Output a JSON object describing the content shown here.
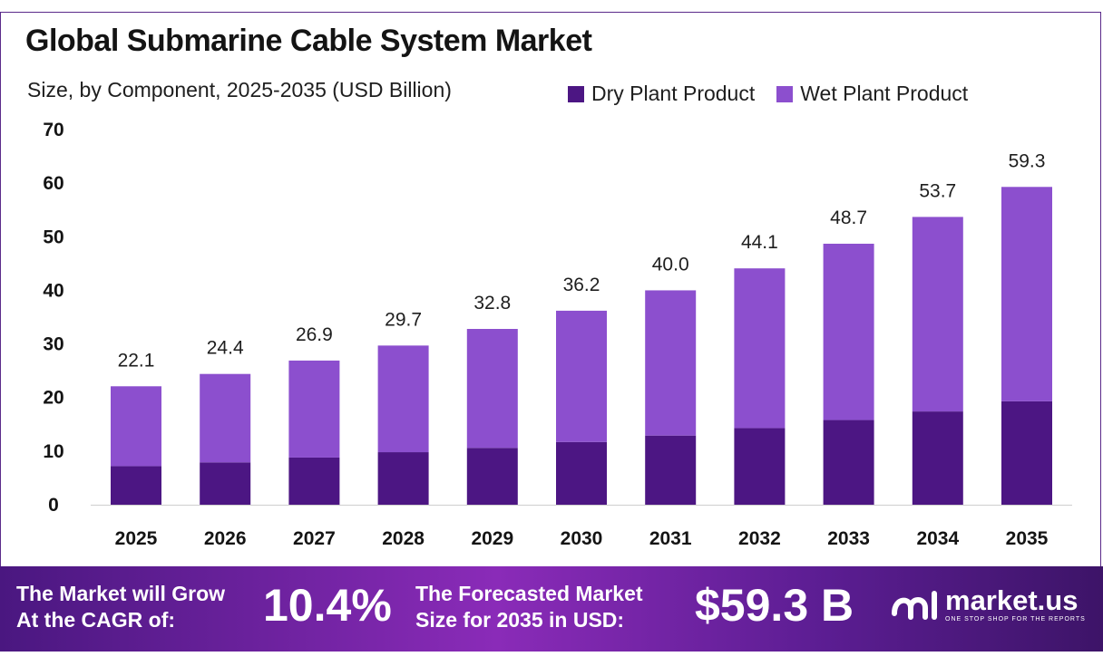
{
  "chart_data": {
    "type": "bar",
    "stacked": true,
    "title": "Global Submarine Cable System Market",
    "subtitle": "Size, by Component, 2025-2035 (USD Billion)",
    "categories": [
      "2025",
      "2026",
      "2027",
      "2028",
      "2029",
      "2030",
      "2031",
      "2032",
      "2033",
      "2034",
      "2035"
    ],
    "series": [
      {
        "name": "Dry Plant Product",
        "color": "#4c1683",
        "values": [
          7.2,
          7.9,
          8.8,
          9.8,
          10.6,
          11.7,
          12.9,
          14.3,
          15.8,
          17.4,
          19.3
        ]
      },
      {
        "name": "Wet Plant Product",
        "color": "#8c4fce",
        "values": [
          14.9,
          16.5,
          18.1,
          19.9,
          22.2,
          24.5,
          27.1,
          29.8,
          32.9,
          36.3,
          40.0
        ]
      }
    ],
    "totals": [
      "22.1",
      "24.4",
      "26.9",
      "29.7",
      "32.8",
      "36.2",
      "40.0",
      "44.1",
      "48.7",
      "53.7",
      "59.3"
    ],
    "yticks": [
      "0",
      "10",
      "20",
      "30",
      "40",
      "50",
      "60",
      "70"
    ],
    "ylim": [
      0,
      70
    ],
    "grid": false,
    "legend_position": "top-right"
  },
  "banner": {
    "cagr_label_line1": "The Market will Grow",
    "cagr_label_line2": "At the CAGR of:",
    "cagr_value": "10.4%",
    "forecast_label_line1": "The Forecasted Market",
    "forecast_label_line2": "Size for 2035 in USD:",
    "forecast_value": "$59.3 B",
    "brand_name": "market.us",
    "brand_tagline": "ONE STOP SHOP FOR THE REPORTS",
    "colors": {
      "start": "#4a1780",
      "mid": "#8a2bb8",
      "end": "#3d1468"
    }
  }
}
